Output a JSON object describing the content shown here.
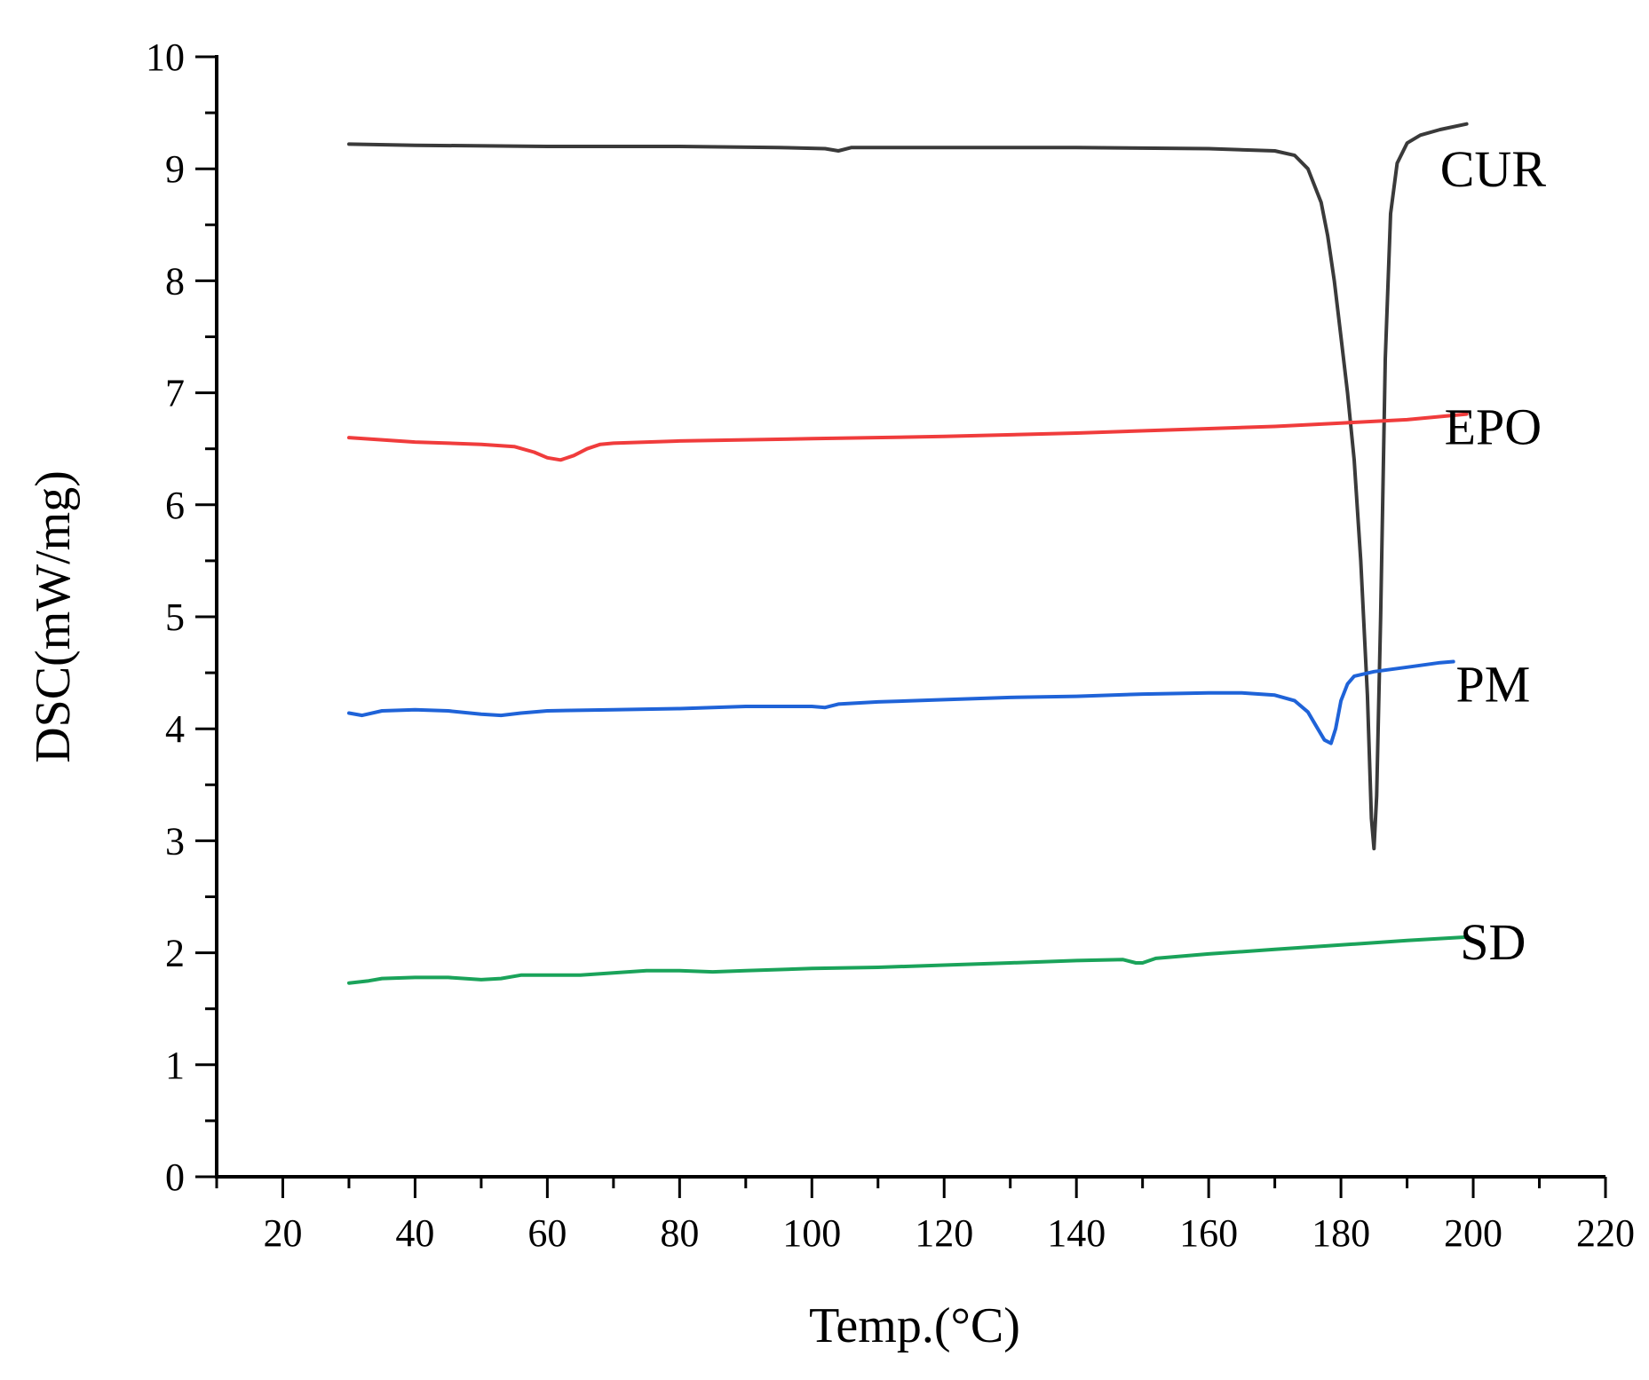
{
  "chart_data": {
    "type": "line",
    "title": "",
    "xlabel": "Temp.(°C)",
    "ylabel": "DSC(mW/mg)",
    "xlim": [
      10,
      220
    ],
    "ylim": [
      0,
      10
    ],
    "x_ticks": [
      20,
      40,
      60,
      80,
      100,
      120,
      140,
      160,
      180,
      200,
      220
    ],
    "y_ticks": [
      0,
      1,
      2,
      3,
      4,
      5,
      6,
      7,
      8,
      9,
      10
    ],
    "x_minor_step": 10,
    "y_minor_step": 0.5,
    "grid": false,
    "series": [
      {
        "name": "CUR",
        "color": "#3a3a3a",
        "points": [
          [
            30,
            9.22
          ],
          [
            40,
            9.21
          ],
          [
            60,
            9.2
          ],
          [
            80,
            9.2
          ],
          [
            95,
            9.19
          ],
          [
            102,
            9.18
          ],
          [
            104,
            9.16
          ],
          [
            106,
            9.19
          ],
          [
            120,
            9.19
          ],
          [
            140,
            9.19
          ],
          [
            160,
            9.18
          ],
          [
            170,
            9.16
          ],
          [
            173,
            9.12
          ],
          [
            175,
            9.0
          ],
          [
            177,
            8.7
          ],
          [
            178,
            8.4
          ],
          [
            179,
            8.0
          ],
          [
            180,
            7.5
          ],
          [
            181,
            7.0
          ],
          [
            182,
            6.4
          ],
          [
            183,
            5.5
          ],
          [
            184,
            4.3
          ],
          [
            184.6,
            3.2
          ],
          [
            185,
            2.93
          ],
          [
            185.4,
            3.4
          ],
          [
            186,
            5.0
          ],
          [
            186.7,
            7.3
          ],
          [
            187.5,
            8.6
          ],
          [
            188.5,
            9.05
          ],
          [
            190,
            9.23
          ],
          [
            192,
            9.3
          ],
          [
            195,
            9.35
          ],
          [
            199,
            9.4
          ]
        ]
      },
      {
        "name": "EPO",
        "color": "#f03c3c",
        "points": [
          [
            30,
            6.6
          ],
          [
            40,
            6.56
          ],
          [
            50,
            6.54
          ],
          [
            55,
            6.52
          ],
          [
            58,
            6.47
          ],
          [
            60,
            6.42
          ],
          [
            62,
            6.4
          ],
          [
            64,
            6.44
          ],
          [
            66,
            6.5
          ],
          [
            68,
            6.54
          ],
          [
            70,
            6.55
          ],
          [
            80,
            6.57
          ],
          [
            100,
            6.59
          ],
          [
            120,
            6.61
          ],
          [
            140,
            6.64
          ],
          [
            160,
            6.68
          ],
          [
            170,
            6.7
          ],
          [
            180,
            6.73
          ],
          [
            190,
            6.76
          ],
          [
            199,
            6.81
          ]
        ]
      },
      {
        "name": "PM",
        "color": "#1f63d8",
        "points": [
          [
            30,
            4.14
          ],
          [
            32,
            4.12
          ],
          [
            35,
            4.16
          ],
          [
            40,
            4.17
          ],
          [
            45,
            4.16
          ],
          [
            50,
            4.13
          ],
          [
            53,
            4.12
          ],
          [
            56,
            4.14
          ],
          [
            60,
            4.16
          ],
          [
            70,
            4.17
          ],
          [
            80,
            4.18
          ],
          [
            90,
            4.2
          ],
          [
            100,
            4.2
          ],
          [
            102,
            4.19
          ],
          [
            104,
            4.22
          ],
          [
            110,
            4.24
          ],
          [
            120,
            4.26
          ],
          [
            130,
            4.28
          ],
          [
            140,
            4.29
          ],
          [
            150,
            4.31
          ],
          [
            160,
            4.32
          ],
          [
            165,
            4.32
          ],
          [
            170,
            4.3
          ],
          [
            173,
            4.25
          ],
          [
            175,
            4.15
          ],
          [
            176.5,
            4.0
          ],
          [
            177.5,
            3.9
          ],
          [
            178.5,
            3.87
          ],
          [
            179.2,
            4.0
          ],
          [
            180,
            4.25
          ],
          [
            181,
            4.4
          ],
          [
            182,
            4.47
          ],
          [
            185,
            4.51
          ],
          [
            190,
            4.55
          ],
          [
            195,
            4.59
          ],
          [
            197,
            4.6
          ]
        ]
      },
      {
        "name": "SD",
        "color": "#1aa35a",
        "points": [
          [
            30,
            1.73
          ],
          [
            33,
            1.75
          ],
          [
            35,
            1.77
          ],
          [
            40,
            1.78
          ],
          [
            45,
            1.78
          ],
          [
            50,
            1.76
          ],
          [
            53,
            1.77
          ],
          [
            56,
            1.8
          ],
          [
            60,
            1.8
          ],
          [
            65,
            1.8
          ],
          [
            70,
            1.82
          ],
          [
            75,
            1.84
          ],
          [
            80,
            1.84
          ],
          [
            85,
            1.83
          ],
          [
            90,
            1.84
          ],
          [
            100,
            1.86
          ],
          [
            110,
            1.87
          ],
          [
            120,
            1.89
          ],
          [
            130,
            1.91
          ],
          [
            140,
            1.93
          ],
          [
            147,
            1.94
          ],
          [
            149,
            1.91
          ],
          [
            150,
            1.91
          ],
          [
            152,
            1.95
          ],
          [
            160,
            1.99
          ],
          [
            170,
            2.03
          ],
          [
            180,
            2.07
          ],
          [
            190,
            2.11
          ],
          [
            199,
            2.14
          ]
        ]
      }
    ],
    "annotations": [
      {
        "text": "CUR",
        "series": "CUR",
        "x": 203,
        "y": 9.0
      },
      {
        "text": "EPO",
        "series": "EPO",
        "x": 203,
        "y": 6.7
      },
      {
        "text": "PM",
        "series": "PM",
        "x": 203,
        "y": 4.4
      },
      {
        "text": "SD",
        "series": "SD",
        "x": 203,
        "y": 2.1
      }
    ]
  }
}
